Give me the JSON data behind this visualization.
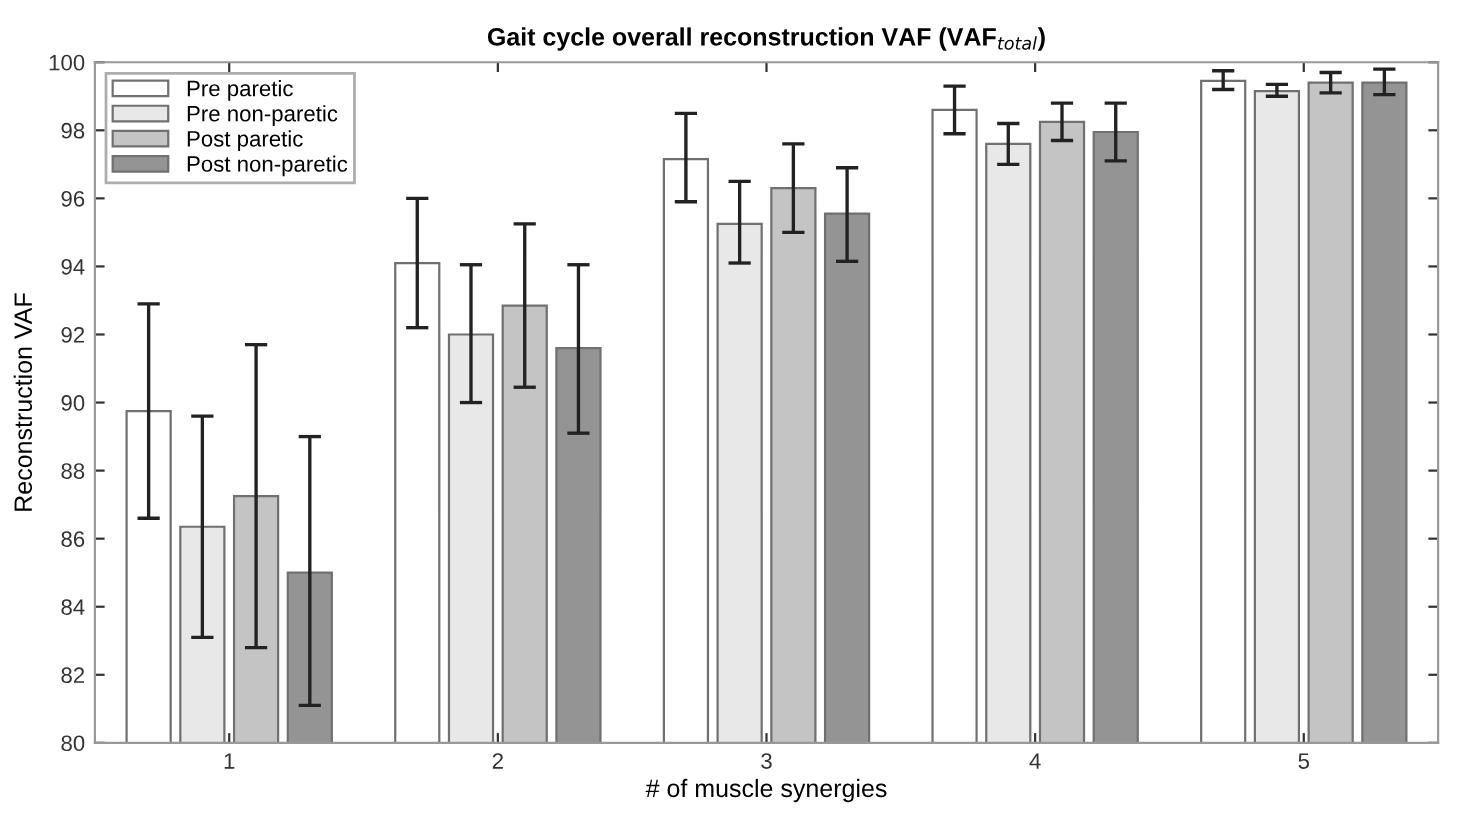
{
  "chart_data": {
    "type": "bar",
    "title": "Gait cycle overall reconstruction VAF (VAF$_{total}$)",
    "xlabel": "# of muscle synergies",
    "ylabel": "Reconstruction VAF",
    "categories": [
      "1",
      "2",
      "3",
      "4",
      "5"
    ],
    "series": [
      {
        "name": "Pre paretic",
        "color": "#ffffff",
        "values": [
          89.75,
          94.1,
          97.15,
          98.6,
          99.45
        ],
        "errors": [
          [
            86.6,
            92.9
          ],
          [
            92.2,
            96.0
          ],
          [
            95.9,
            98.5
          ],
          [
            97.9,
            99.3
          ],
          [
            99.2,
            99.75
          ]
        ]
      },
      {
        "name": "Pre non-paretic",
        "color": "#e8e8e8",
        "values": [
          86.35,
          92.0,
          95.25,
          97.6,
          99.15
        ],
        "errors": [
          [
            83.1,
            89.6
          ],
          [
            90.0,
            94.05
          ],
          [
            94.1,
            96.5
          ],
          [
            97.0,
            98.2
          ],
          [
            99.0,
            99.35
          ]
        ]
      },
      {
        "name": "Post paretic",
        "color": "#c4c4c4",
        "values": [
          87.25,
          92.85,
          96.3,
          98.25,
          99.4
        ],
        "errors": [
          [
            82.8,
            91.7
          ],
          [
            90.45,
            95.25
          ],
          [
            95.0,
            97.6
          ],
          [
            97.7,
            98.8
          ],
          [
            99.1,
            99.7
          ]
        ]
      },
      {
        "name": "Post non-paretic",
        "color": "#949494",
        "values": [
          85.0,
          91.6,
          95.55,
          97.95,
          99.4
        ],
        "errors": [
          [
            81.1,
            89.0
          ],
          [
            89.1,
            94.05
          ],
          [
            94.15,
            96.9
          ],
          [
            97.1,
            98.8
          ],
          [
            99.05,
            99.8
          ]
        ]
      }
    ],
    "ylim": [
      80,
      100
    ],
    "yticks": [
      80,
      82,
      84,
      86,
      88,
      90,
      92,
      94,
      96,
      98,
      100
    ],
    "grid": false,
    "legend": "top left"
  }
}
